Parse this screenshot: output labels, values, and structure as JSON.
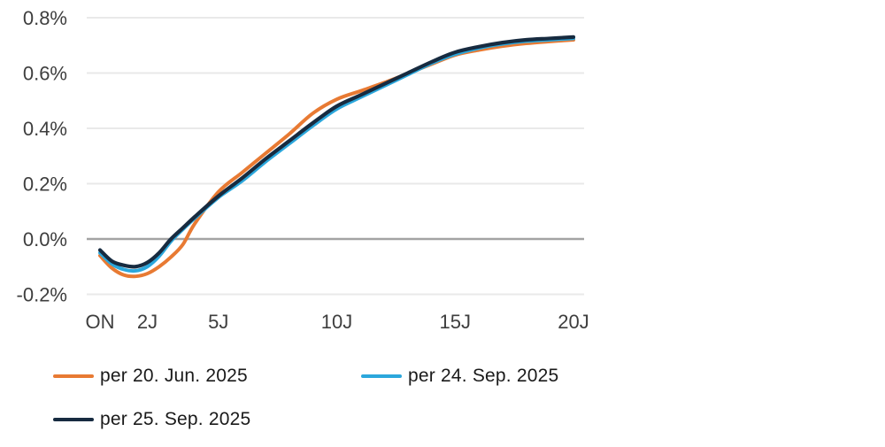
{
  "chart_data": {
    "type": "line",
    "title": "",
    "grid": true,
    "legend_position": "bottom-left",
    "grid_color": "#e9e9e9",
    "zero_line_color": "#a3a3a3",
    "axis_label_color": "#3e3e3e",
    "ylim": [
      -0.2,
      0.8
    ],
    "y_ticks": [
      {
        "label": "0.8%",
        "value": 0.8
      },
      {
        "label": "0.6%",
        "value": 0.6
      },
      {
        "label": "0.4%",
        "value": 0.4
      },
      {
        "label": "0.2%",
        "value": 0.2
      },
      {
        "label": "0.0%",
        "value": 0.0
      },
      {
        "label": "-0.2%",
        "value": -0.2
      }
    ],
    "x_ticks": [
      {
        "label": "ON",
        "years": 0
      },
      {
        "label": "2J",
        "years": 2
      },
      {
        "label": "5J",
        "years": 5
      },
      {
        "label": "10J",
        "years": 10
      },
      {
        "label": "15J",
        "years": 15
      },
      {
        "label": "20J",
        "years": 20
      }
    ],
    "series": [
      {
        "name": "per 20. Jun. 2025",
        "color": "#e87a33",
        "width": 4,
        "points": [
          [
            0,
            -0.06
          ],
          [
            0.5,
            -0.105
          ],
          [
            1,
            -0.13
          ],
          [
            1.5,
            -0.135
          ],
          [
            2,
            -0.125
          ],
          [
            2.5,
            -0.1
          ],
          [
            3,
            -0.065
          ],
          [
            3.5,
            -0.02
          ],
          [
            4,
            0.055
          ],
          [
            5,
            0.17
          ],
          [
            6,
            0.24
          ],
          [
            7,
            0.31
          ],
          [
            8,
            0.38
          ],
          [
            9,
            0.455
          ],
          [
            10,
            0.505
          ],
          [
            11,
            0.535
          ],
          [
            12,
            0.565
          ],
          [
            13,
            0.598
          ],
          [
            14,
            0.632
          ],
          [
            15,
            0.665
          ],
          [
            16,
            0.683
          ],
          [
            17,
            0.697
          ],
          [
            18,
            0.707
          ],
          [
            19,
            0.714
          ],
          [
            20,
            0.72
          ]
        ]
      },
      {
        "name": "per 24. Sep. 2025",
        "color": "#2ba7dc",
        "width": 4,
        "points": [
          [
            0,
            -0.05
          ],
          [
            0.5,
            -0.09
          ],
          [
            1,
            -0.11
          ],
          [
            1.5,
            -0.115
          ],
          [
            2,
            -0.1
          ],
          [
            2.5,
            -0.062
          ],
          [
            3,
            -0.008
          ],
          [
            3.5,
            0.035
          ],
          [
            4,
            0.075
          ],
          [
            5,
            0.15
          ],
          [
            6,
            0.21
          ],
          [
            7,
            0.28
          ],
          [
            8,
            0.345
          ],
          [
            9,
            0.41
          ],
          [
            10,
            0.47
          ],
          [
            11,
            0.512
          ],
          [
            12,
            0.553
          ],
          [
            13,
            0.594
          ],
          [
            14,
            0.635
          ],
          [
            15,
            0.668
          ],
          [
            16,
            0.69
          ],
          [
            17,
            0.705
          ],
          [
            18,
            0.715
          ],
          [
            19,
            0.72
          ],
          [
            20,
            0.725
          ]
        ]
      },
      {
        "name": "per 25. Sep. 2025",
        "color": "#172b40",
        "width": 4.2,
        "points": [
          [
            0,
            -0.04
          ],
          [
            0.5,
            -0.08
          ],
          [
            1,
            -0.095
          ],
          [
            1.5,
            -0.1
          ],
          [
            2,
            -0.085
          ],
          [
            2.5,
            -0.05
          ],
          [
            3,
            0.0
          ],
          [
            3.5,
            0.04
          ],
          [
            4,
            0.08
          ],
          [
            5,
            0.155
          ],
          [
            6,
            0.22
          ],
          [
            7,
            0.29
          ],
          [
            8,
            0.355
          ],
          [
            9,
            0.42
          ],
          [
            10,
            0.48
          ],
          [
            11,
            0.52
          ],
          [
            12,
            0.56
          ],
          [
            13,
            0.6
          ],
          [
            14,
            0.64
          ],
          [
            15,
            0.675
          ],
          [
            16,
            0.695
          ],
          [
            17,
            0.71
          ],
          [
            18,
            0.72
          ],
          [
            19,
            0.725
          ],
          [
            20,
            0.73
          ]
        ]
      }
    ]
  }
}
